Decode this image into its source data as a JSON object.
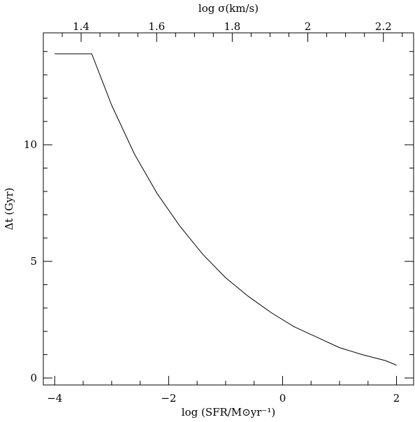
{
  "chart_data": {
    "type": "line",
    "xlabel": "log (SFR/M⊙yr⁻¹)",
    "ylabel": "Δt (Gyr)",
    "x2label": "log σ(km/s)",
    "xlim": [
      -4.2,
      2.3
    ],
    "ylim": [
      -0.3,
      14.8
    ],
    "x2lim": [
      1.3,
      2.28
    ],
    "x_ticks": [
      -4,
      -2,
      0,
      2
    ],
    "x_tick_labels": [
      "−4",
      "−2",
      "0",
      "2"
    ],
    "y_ticks": [
      0,
      5,
      10
    ],
    "y_tick_labels": [
      "0",
      "5",
      "10"
    ],
    "x2_ticks": [
      1.4,
      1.6,
      1.8,
      2.0,
      2.2
    ],
    "x2_tick_labels": [
      "1.4",
      "1.6",
      "1.8",
      "2",
      "2.2"
    ],
    "grid": false,
    "series": [
      {
        "x": [
          -4.0,
          -3.35,
          -3.0,
          -2.6,
          -2.2,
          -1.8,
          -1.4,
          -1.0,
          -0.6,
          -0.2,
          0.2,
          0.6,
          1.0,
          1.4,
          1.8,
          2.0
        ],
        "y": [
          13.9,
          13.9,
          11.7,
          9.6,
          7.9,
          6.5,
          5.3,
          4.3,
          3.5,
          2.8,
          2.2,
          1.75,
          1.3,
          1.0,
          0.75,
          0.55
        ]
      }
    ]
  }
}
